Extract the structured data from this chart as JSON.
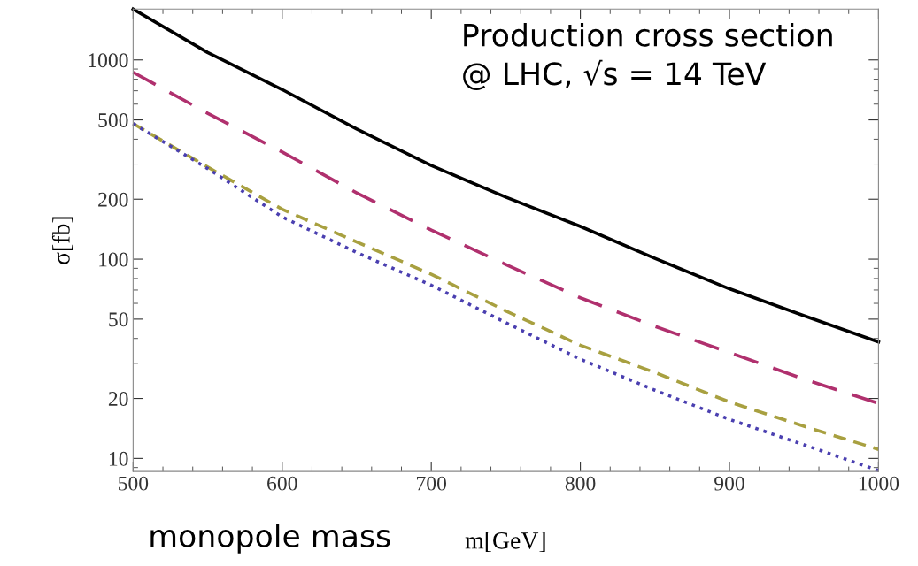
{
  "chart_data": {
    "type": "line",
    "xlabel": "m[GeV]",
    "ylabel": "σ[fb]",
    "annotations": [
      "Production cross section\n@ LHC, √s = 14 TeV",
      "monopole mass"
    ],
    "x": [
      500,
      550,
      600,
      650,
      700,
      750,
      800,
      850,
      900,
      950,
      1000
    ],
    "series": [
      {
        "color": "#000000",
        "line_style": "solid",
        "values": [
          1800,
          1090,
          710,
          450,
          295,
          205,
          146,
          101,
          71,
          52,
          38.4
        ]
      },
      {
        "color": "#b0306e",
        "line_style": "dashed",
        "values": [
          867,
          540,
          345,
          215,
          140,
          94,
          64,
          46,
          34,
          25,
          18.9
        ]
      },
      {
        "color": "#a8a040",
        "line_style": "dashed",
        "values": [
          479,
          290,
          178,
          122,
          84,
          55,
          37,
          27,
          19.2,
          14.5,
          11.1
        ]
      },
      {
        "color": "#4a3fb0",
        "line_style": "dotted",
        "values": [
          479,
          285,
          163,
          108,
          74,
          48,
          31.5,
          22,
          15.7,
          11.7,
          8.7
        ]
      }
    ],
    "log": "y",
    "xlim": [
      500,
      1000
    ],
    "ylim": [
      8.6,
      1800
    ],
    "xticks": [
      500,
      600,
      700,
      800,
      900,
      1000
    ],
    "yticks": [
      10,
      20,
      50,
      100,
      200,
      500,
      1000
    ],
    "grid": false,
    "legend": false
  }
}
